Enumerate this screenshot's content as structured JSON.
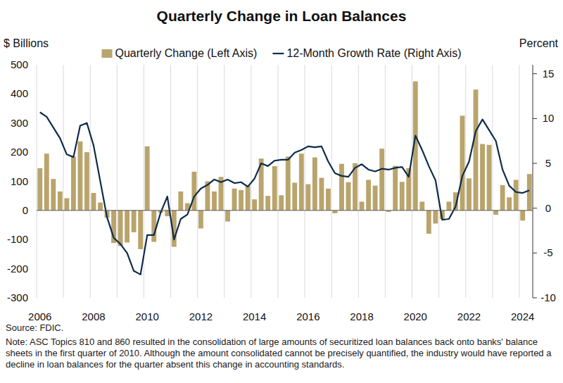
{
  "chart_data": {
    "type": "bar",
    "title": "Quarterly Change in Loan Balances",
    "y_label": "$ Billions",
    "y2_label": "Percent",
    "source": "Source: FDIC.",
    "note": "Note: ASC Topics 810 and 860 resulted in the consolidation of large amounts of securitized loan balances back onto banks' balance sheets in the first quarter of 2010. Although the amount consolidated cannot be precisely quantified, the industry would have reported a decline in loan balances for the quarter absent this change in accounting standards.",
    "categories": [
      "2006",
      null,
      null,
      null,
      null,
      null,
      null,
      null,
      "2008",
      null,
      null,
      null,
      null,
      null,
      null,
      null,
      "2010",
      null,
      null,
      null,
      null,
      null,
      null,
      null,
      "2012",
      null,
      null,
      null,
      null,
      null,
      null,
      null,
      "2014",
      null,
      null,
      null,
      null,
      null,
      null,
      null,
      "2016",
      null,
      null,
      null,
      null,
      null,
      null,
      null,
      "2018",
      null,
      null,
      null,
      null,
      null,
      null,
      null,
      "2020",
      null,
      null,
      null,
      null,
      null,
      null,
      null,
      "2022",
      null,
      null,
      null,
      null,
      null,
      null,
      null,
      "2024",
      null
    ],
    "series": [
      {
        "name": "Quarterly Change (Left Axis)",
        "type": "bar",
        "color": "#b9a46c",
        "values": [
          145,
          195,
          108,
          65,
          42,
          185,
          237,
          200,
          60,
          27,
          -25,
          -112,
          -122,
          -110,
          -75,
          -133,
          220,
          -108,
          -8,
          -20,
          -125,
          65,
          25,
          133,
          -62,
          100,
          65,
          115,
          -38,
          75,
          70,
          85,
          38,
          178,
          50,
          152,
          52,
          185,
          95,
          195,
          90,
          182,
          112,
          75,
          -10,
          160,
          97,
          162,
          30,
          105,
          85,
          212,
          -5,
          153,
          98,
          145,
          443,
          30,
          -80,
          -45,
          -30,
          30,
          62,
          325,
          110,
          415,
          228,
          225,
          -15,
          87,
          45,
          105,
          -35,
          125
        ]
      },
      {
        "name": "12-Month Growth Rate (Right Axis)",
        "type": "line",
        "axis": "y2",
        "color": "#0e2c4a",
        "values": [
          10.7,
          10.2,
          9,
          7.8,
          6,
          5.7,
          9.2,
          9.5,
          7,
          3,
          -1,
          -3.3,
          -4,
          -5,
          -7,
          -7.4,
          -3,
          -3,
          -0.5,
          1.3,
          -3.5,
          -1.2,
          -0.7,
          1.3,
          2.2,
          2.6,
          3.2,
          2.9,
          3.2,
          2.8,
          2.9,
          2.4,
          3.3,
          5,
          4.7,
          5.3,
          5.4,
          5.4,
          6.2,
          6.5,
          6.9,
          6.8,
          6.9,
          5.2,
          3.9,
          3.6,
          3.5,
          4.5,
          4.9,
          4.3,
          4.1,
          4.4,
          4.3,
          4.5,
          4.6,
          3.5,
          8.1,
          6.5,
          4.7,
          3.1,
          -1.3,
          -1.2,
          0.2,
          3.6,
          5.2,
          8.6,
          9.9,
          8.7,
          7.5,
          4.3,
          2.5,
          1.8,
          1.7,
          2
        ]
      }
    ],
    "ylim": [
      -300,
      500
    ],
    "yticks": [
      -300,
      -200,
      -100,
      0,
      100,
      200,
      300,
      400,
      500
    ],
    "y2lim": [
      -10,
      16
    ],
    "y2ticks": [
      -10,
      -5,
      0,
      5,
      10,
      15
    ],
    "grid": true,
    "legend": "top"
  }
}
